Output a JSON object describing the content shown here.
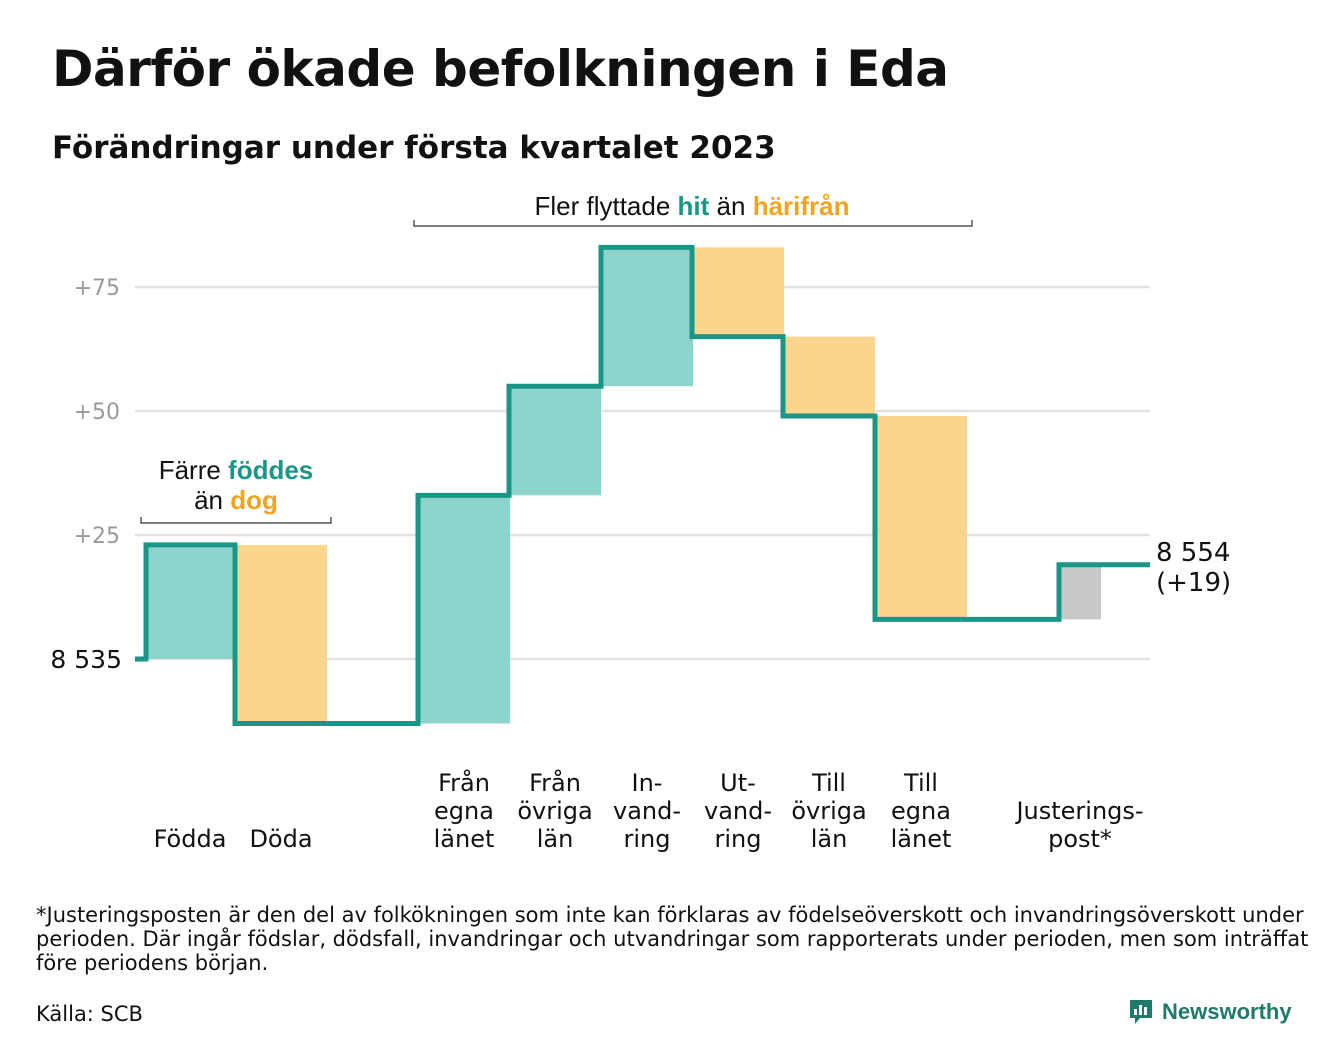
{
  "header": {
    "title": "Därför ökade befolkningen i Eda",
    "subtitle": "Förändringar under första kvartalet 2023"
  },
  "annotations": {
    "births": {
      "line1": "Färre ",
      "hl1": "föddes",
      "line2": "än ",
      "hl2": "dog"
    },
    "moves": {
      "pre": "Fler flyttade ",
      "hl1": "hit",
      "mid": " än ",
      "hl2": "härifrån"
    }
  },
  "colors": {
    "line": "#1a9687",
    "increase": "#8dd5cc",
    "decrease": "#fad58d",
    "adjustment": "#c8c8c8",
    "grid": "#e2e2e2",
    "tick": "#9a9a9a",
    "hl_increase": "#1a9687",
    "hl_decrease": "#f2a320"
  },
  "chart_data": {
    "type": "waterfall",
    "baseline": 8535,
    "baseline_label": "8 535",
    "end_label_line1": "8 554",
    "end_label_line2": "(+19)",
    "yticks": [
      {
        "value": 25,
        "label": "+25"
      },
      {
        "value": 50,
        "label": "+50"
      },
      {
        "value": 75,
        "label": "+75"
      }
    ],
    "ylim": [
      -16,
      92
    ],
    "steps": [
      {
        "label_lines": [
          "Födda"
        ],
        "change": 23,
        "kind": "increase"
      },
      {
        "label_lines": [
          "Döda"
        ],
        "change": -36,
        "kind": "decrease"
      },
      {
        "label_lines": [
          "Från",
          "egna",
          "länet"
        ],
        "change": 46,
        "kind": "increase"
      },
      {
        "label_lines": [
          "Från",
          "övriga",
          "län"
        ],
        "change": 22,
        "kind": "increase"
      },
      {
        "label_lines": [
          "In-",
          "vand-",
          "ring"
        ],
        "change": 28,
        "kind": "increase"
      },
      {
        "label_lines": [
          "Ut-",
          "vand-",
          "ring"
        ],
        "change": -18,
        "kind": "decrease"
      },
      {
        "label_lines": [
          "Till",
          "övriga",
          "län"
        ],
        "change": -16,
        "kind": "decrease"
      },
      {
        "label_lines": [
          "Till",
          "egna",
          "länet"
        ],
        "change": -41,
        "kind": "decrease"
      },
      {
        "label_lines": [
          "Justerings-",
          "post*"
        ],
        "change": 11,
        "kind": "adjustment"
      }
    ]
  },
  "footer": {
    "footnote": "*Justeringsposten är den del av folkökningen som inte kan förklaras av födelseöverskott och invandringsöverskott under perioden. Där ingår födslar, dödsfall, invandringar och utvandringar som rapporterats under perioden, men som inträffat före periodens början.",
    "source": "Källa: SCB",
    "brand": "Newsworthy"
  }
}
